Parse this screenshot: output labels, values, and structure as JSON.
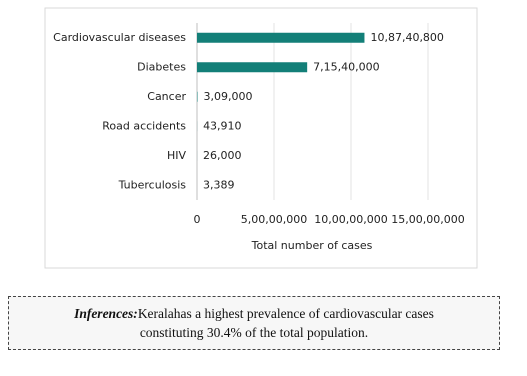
{
  "chart_data": {
    "type": "hbar",
    "x_label": "Total number of cases",
    "categories": [
      "Cardiovascular diseases",
      "Diabetes",
      "Cancer",
      "Road accidents",
      "HIV",
      "Tuberculosis"
    ],
    "values": [
      108740800,
      71540000,
      309000,
      43910,
      26000,
      3389
    ],
    "value_labels": [
      "10,87,40,800",
      "7,15,40,000",
      "3,09,000",
      "43,910",
      "26,000",
      "3,389"
    ],
    "color": "#137f78",
    "xlim": [
      0,
      150000000
    ],
    "xticks": [
      0,
      {
        "value": 50000000,
        "label": "5,00,00,000"
      },
      {
        "value": 100000000,
        "label": "10,00,00,000"
      },
      {
        "value": 150000000,
        "label": "15,00,00,000"
      }
    ],
    "grid": true
  },
  "inference": {
    "label": "Inferences:",
    "text_lines": [
      "Keralahas a highest prevalence of cardiovascular cases",
      "constituting 30.4% of the total population."
    ]
  }
}
